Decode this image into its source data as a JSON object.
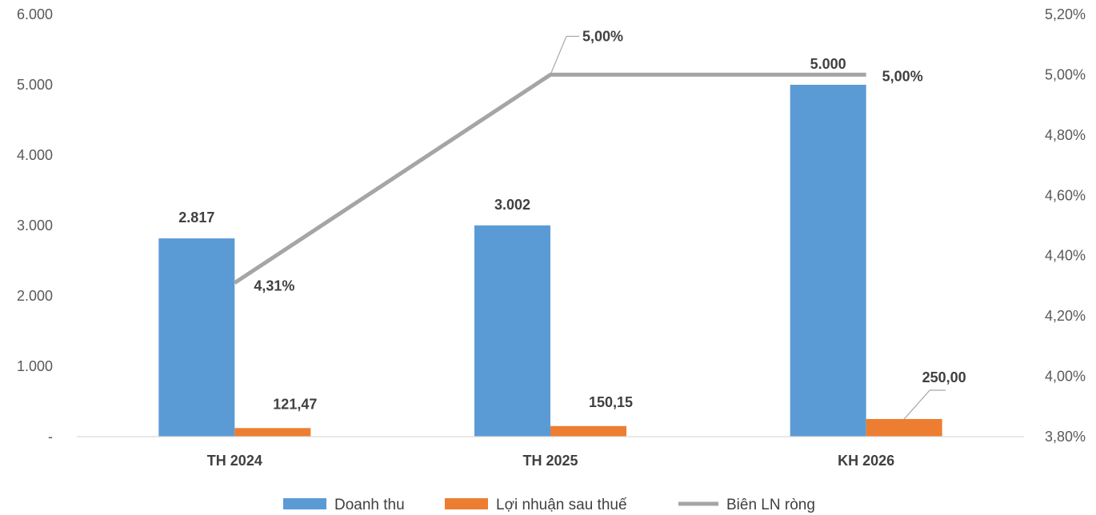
{
  "chart_data": {
    "type": "bar",
    "categories": [
      "TH 2024",
      "TH 2025",
      "KH 2026"
    ],
    "series": [
      {
        "name": "Doanh thu",
        "kind": "bar",
        "axis": "left",
        "color": "#5B9BD5",
        "values": [
          2817,
          3002,
          5000
        ],
        "labels": [
          "2.817",
          "3.002",
          "5.000"
        ]
      },
      {
        "name": "Lợi nhuận sau thuế",
        "kind": "bar",
        "axis": "left",
        "color": "#ED7D31",
        "values": [
          121.47,
          150.15,
          250.0
        ],
        "labels": [
          "121,47",
          "150,15",
          "250,00"
        ]
      },
      {
        "name": "Biên LN ròng",
        "kind": "line",
        "axis": "right",
        "color": "#A5A5A5",
        "values": [
          4.31,
          5.0,
          5.0
        ],
        "labels": [
          "4,31%",
          "5,00%",
          "5,00%"
        ]
      }
    ],
    "y_left": {
      "min": 0,
      "max": 6000,
      "ticks": [
        "-",
        "1.000",
        "2.000",
        "3.000",
        "4.000",
        "5.000",
        "6.000"
      ]
    },
    "y_right": {
      "min": 3.8,
      "max": 5.2,
      "ticks": [
        "3,80%",
        "4,00%",
        "4,20%",
        "4,40%",
        "4,60%",
        "4,80%",
        "5,00%",
        "5,20%"
      ]
    },
    "grid": false,
    "legend_position": "bottom",
    "title": "",
    "xlabel": "",
    "ylabel": ""
  }
}
